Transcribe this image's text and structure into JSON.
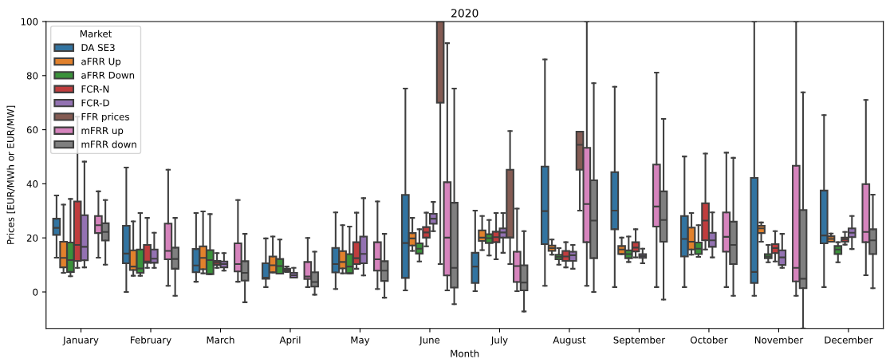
{
  "chart_data": {
    "type": "box",
    "title": "2020",
    "xlabel": "Month",
    "ylabel": "Prices [EUR/MWh or EUR/MW]",
    "legend_title": "Market",
    "legend": "top left",
    "grid": false,
    "categories": [
      "January",
      "February",
      "March",
      "April",
      "May",
      "June",
      "July",
      "August",
      "September",
      "October",
      "November",
      "December"
    ],
    "ylim": [
      -13.5,
      100
    ],
    "yticks": [
      0,
      20,
      40,
      60,
      80,
      100
    ],
    "series": [
      {
        "name": "DA SE3",
        "color": "#3274a1",
        "boxes": [
          {
            "low": 12.7,
            "q1": 21.1,
            "median": 23.7,
            "q3": 27.1,
            "high": 35.7
          },
          {
            "low": 0,
            "q1": 10.6,
            "median": 14.2,
            "q3": 24.5,
            "high": 46
          },
          {
            "low": 3.8,
            "q1": 7.3,
            "median": 9.8,
            "q3": 15.9,
            "high": 29.2
          },
          {
            "low": 1.8,
            "q1": 4.9,
            "median": 5.3,
            "q3": 10.6,
            "high": 19.8
          },
          {
            "low": 1.1,
            "q1": 7.2,
            "median": 10.3,
            "q3": 16.3,
            "high": 29.4
          },
          {
            "low": 0.6,
            "q1": 5.2,
            "median": 18.1,
            "q3": 35.9,
            "high": 75.2
          },
          {
            "low": 0.3,
            "q1": 3.3,
            "median": 9.4,
            "q3": 14.5,
            "high": 30.1
          },
          {
            "low": 2.3,
            "q1": 17.7,
            "median": 29.9,
            "q3": 46.4,
            "high": 86.0
          },
          {
            "low": 1.8,
            "q1": 23.2,
            "median": 30.1,
            "q3": 44.3,
            "high": 75.9
          },
          {
            "low": 1.8,
            "q1": 13.1,
            "median": 19.6,
            "q3": 28.1,
            "high": 50.1
          },
          {
            "low": -1.4,
            "q1": 3.3,
            "median": 7.4,
            "q3": 42.2,
            "high": 100
          },
          {
            "low": 1.8,
            "q1": 18.0,
            "median": 20.9,
            "q3": 37.5,
            "high": 65.4
          }
        ]
      },
      {
        "name": "aFRR Up",
        "color": "#e1812c",
        "boxes": [
          {
            "low": 7.1,
            "q1": 9.1,
            "median": 12.6,
            "q3": 18.6,
            "high": 32.3
          },
          {
            "low": 6.0,
            "q1": 8.1,
            "median": 9.4,
            "q3": 15.4,
            "high": 26.1
          },
          {
            "low": 6.9,
            "q1": 8.4,
            "median": 12.6,
            "q3": 16.9,
            "high": 29.8
          },
          {
            "low": 7.2,
            "q1": 7.2,
            "median": 9.9,
            "q3": 13.1,
            "high": 20.5
          },
          {
            "low": 6.9,
            "q1": 8.7,
            "median": 11.1,
            "q3": 15.1,
            "high": 24.7
          },
          {
            "low": 15.2,
            "q1": 17.2,
            "median": 19.8,
            "q3": 21.8,
            "high": 27.4
          },
          {
            "low": 15.5,
            "q1": 18.9,
            "median": 20.1,
            "q3": 22.8,
            "high": 28.1
          },
          {
            "low": 13.8,
            "q1": 15.2,
            "median": 16.2,
            "q3": 17.2,
            "high": 19.4
          },
          {
            "low": 14.0,
            "q1": 14.0,
            "median": 15.7,
            "q3": 17.0,
            "high": 20.1
          },
          {
            "low": 13.8,
            "q1": 15.7,
            "median": 18.6,
            "q3": 23.8,
            "high": 29.2
          },
          {
            "low": 18.6,
            "q1": 21.8,
            "median": 23.5,
            "q3": 24.5,
            "high": 25.7
          },
          {
            "low": 18.6,
            "q1": 18.6,
            "median": 19.6,
            "q3": 20.6,
            "high": 21.6
          }
        ]
      },
      {
        "name": "aFRR Down",
        "color": "#3a923a",
        "boxes": [
          {
            "low": 5.8,
            "q1": 7.4,
            "median": 11.8,
            "q3": 18.3,
            "high": 34.4
          },
          {
            "low": 6.0,
            "q1": 7.1,
            "median": 8.7,
            "q3": 15.7,
            "high": 29.2
          },
          {
            "low": 6.6,
            "q1": 6.6,
            "median": 11.8,
            "q3": 15.5,
            "high": 28.8
          },
          {
            "low": 6.8,
            "q1": 6.8,
            "median": 9.6,
            "q3": 12.2,
            "high": 19.4
          },
          {
            "low": 6.9,
            "q1": 6.9,
            "median": 9.4,
            "q3": 14.0,
            "high": 24.2
          },
          {
            "low": 11.3,
            "q1": 14.2,
            "median": 16.0,
            "q3": 18.0,
            "high": 23.2
          },
          {
            "low": 13.5,
            "q1": 18.1,
            "median": 19.9,
            "q3": 21.4,
            "high": 26.6
          },
          {
            "low": 10.1,
            "q1": 12.1,
            "median": 13.0,
            "q3": 13.8,
            "high": 16.2
          },
          {
            "low": 11.1,
            "q1": 12.5,
            "median": 14.0,
            "q3": 15.4,
            "high": 20.5
          },
          {
            "low": 13.0,
            "q1": 14.0,
            "median": 16.0,
            "q3": 18.3,
            "high": 24.7
          },
          {
            "low": 11.0,
            "q1": 12.5,
            "median": 13.1,
            "q3": 14.0,
            "high": 17.4
          },
          {
            "low": 11.0,
            "q1": 14.0,
            "median": 15.7,
            "q3": 17.0,
            "high": 18.4
          }
        ]
      },
      {
        "name": "FCR-N",
        "color": "#c03d3e",
        "boxes": [
          {
            "low": 8.9,
            "q1": 11.5,
            "median": 17.4,
            "q3": 33.5,
            "high": 64.8
          },
          {
            "low": 8.9,
            "q1": 10.8,
            "median": 11.3,
            "q3": 17.4,
            "high": 27.4
          },
          {
            "low": 8.9,
            "q1": 10.0,
            "median": 10.8,
            "q3": 11.5,
            "high": 14.4
          },
          {
            "low": 7.4,
            "q1": 7.6,
            "median": 8.1,
            "q3": 8.6,
            "high": 9.4
          },
          {
            "low": 8.6,
            "q1": 10.3,
            "median": 12.5,
            "q3": 18.4,
            "high": 29.3
          },
          {
            "low": 16.9,
            "q1": 20.1,
            "median": 22.0,
            "q3": 24.0,
            "high": 29.3
          },
          {
            "low": 12.1,
            "q1": 18.4,
            "median": 20.3,
            "q3": 22.3,
            "high": 29.2
          },
          {
            "low": 9.1,
            "q1": 11.5,
            "median": 13.1,
            "q3": 15.2,
            "high": 18.4
          },
          {
            "low": 12.8,
            "q1": 15.0,
            "median": 16.4,
            "q3": 18.4,
            "high": 23.2
          },
          {
            "low": 15.7,
            "q1": 19.1,
            "median": 26.4,
            "q3": 32.8,
            "high": 51.2
          },
          {
            "low": 11.3,
            "q1": 14.4,
            "median": 16.2,
            "q3": 17.7,
            "high": 22.5
          },
          {
            "low": 17.5,
            "q1": 18.6,
            "median": 19.4,
            "q3": 20.1,
            "high": 22.2
          }
        ]
      },
      {
        "name": "FCR-D",
        "color": "#9372b2",
        "boxes": [
          {
            "low": 9.1,
            "q1": 11.7,
            "median": 16.7,
            "q3": 28.4,
            "high": 48.2
          },
          {
            "low": 8.9,
            "q1": 10.8,
            "median": 12.3,
            "q3": 15.7,
            "high": 21.9
          },
          {
            "low": 7.9,
            "q1": 9.1,
            "median": 10.3,
            "q3": 11.3,
            "high": 14.4
          },
          {
            "low": 5.3,
            "q1": 5.3,
            "median": 6.2,
            "q3": 7.1,
            "high": 8.9
          },
          {
            "low": 6.1,
            "q1": 10.6,
            "median": 14.1,
            "q3": 20.5,
            "high": 34.7
          },
          {
            "low": 22.5,
            "q1": 25.2,
            "median": 27.1,
            "q3": 28.9,
            "high": 33.3
          },
          {
            "low": 14.5,
            "q1": 20.1,
            "median": 22.0,
            "q3": 23.5,
            "high": 29.2
          },
          {
            "low": 8.6,
            "q1": 11.5,
            "median": 13.6,
            "q3": 14.9,
            "high": 17.4
          },
          {
            "low": 10.6,
            "q1": 12.6,
            "median": 13.3,
            "q3": 14.0,
            "high": 16.0
          },
          {
            "low": 12.8,
            "q1": 16.7,
            "median": 19.1,
            "q3": 21.9,
            "high": 29.4
          },
          {
            "low": 8.9,
            "q1": 10.0,
            "median": 12.8,
            "q3": 15.4,
            "high": 21.5
          },
          {
            "low": 15.9,
            "q1": 20.3,
            "median": 21.9,
            "q3": 23.5,
            "high": 28.1
          }
        ]
      },
      {
        "name": "FFR prices",
        "color": "#845b53",
        "boxes": [
          null,
          null,
          null,
          null,
          null,
          {
            "low": 10.3,
            "q1": 70.0,
            "median": 100,
            "q3": 100,
            "high": 100
          },
          {
            "low": 10.3,
            "q1": 20.1,
            "median": 20.1,
            "q3": 45.2,
            "high": 59.5
          },
          {
            "low": 30.1,
            "q1": 45.2,
            "median": 54.4,
            "q3": 59.3,
            "high": 59.3
          },
          null,
          null,
          null,
          null
        ]
      },
      {
        "name": "mFRR up",
        "color": "#d684bd",
        "boxes": [
          {
            "low": 12.7,
            "q1": 21.8,
            "median": 24.7,
            "q3": 28.1,
            "high": 37.2
          },
          {
            "low": 2.3,
            "q1": 12.1,
            "median": 15.2,
            "q3": 25.3,
            "high": 45.2
          },
          {
            "low": 3.8,
            "q1": 7.6,
            "median": 10.3,
            "q3": 18.0,
            "high": 34.0
          },
          {
            "low": 1.8,
            "q1": 4.8,
            "median": 5.7,
            "q3": 11.1,
            "high": 20.0
          },
          {
            "low": 1.1,
            "q1": 7.9,
            "median": 12.1,
            "q3": 18.4,
            "high": 33.5
          },
          {
            "low": 0.6,
            "q1": 6.1,
            "median": 20.1,
            "q3": 40.6,
            "high": 92.0
          },
          {
            "low": 0.3,
            "q1": 3.7,
            "median": 9.6,
            "q3": 14.9,
            "high": 30.8
          },
          {
            "low": 2.3,
            "q1": 18.4,
            "median": 32.5,
            "q3": 53.3,
            "high": 100
          },
          {
            "low": 1.8,
            "q1": 24.2,
            "median": 31.6,
            "q3": 47.1,
            "high": 81.1
          },
          {
            "low": 1.8,
            "q1": 14.9,
            "median": 20.4,
            "q3": 29.4,
            "high": 51.5
          },
          {
            "low": -1.4,
            "q1": 3.9,
            "median": 8.9,
            "q3": 46.7,
            "high": 100
          },
          {
            "low": 6.2,
            "q1": 18.4,
            "median": 22.2,
            "q3": 39.9,
            "high": 71.0
          }
        ]
      },
      {
        "name": "mFRR down",
        "color": "#7f7f7f",
        "boxes": [
          {
            "low": 10.1,
            "q1": 19.0,
            "median": 22.2,
            "q3": 25.4,
            "high": 34.0
          },
          {
            "low": -1.4,
            "q1": 8.6,
            "median": 12.2,
            "q3": 16.4,
            "high": 27.4
          },
          {
            "low": -3.8,
            "q1": 4.2,
            "median": 7.1,
            "q3": 11.4,
            "high": 21.5
          },
          {
            "low": -1.0,
            "q1": 2.0,
            "median": 3.7,
            "q3": 7.3,
            "high": 14.9
          },
          {
            "low": -2.1,
            "q1": 4.1,
            "median": 7.9,
            "q3": 11.4,
            "high": 21.5
          },
          {
            "low": -4.5,
            "q1": 1.6,
            "median": 8.9,
            "q3": 33.0,
            "high": 75.2
          },
          {
            "low": -7.2,
            "q1": 0.6,
            "median": 3.5,
            "q3": 9.9,
            "high": 22.5
          },
          {
            "low": 0,
            "q1": 12.5,
            "median": 26.4,
            "q3": 41.3,
            "high": 77.2
          },
          {
            "low": -2.8,
            "q1": 18.6,
            "median": 26.6,
            "q3": 37.2,
            "high": 64.0
          },
          {
            "low": -1.4,
            "q1": 10.3,
            "median": 17.4,
            "q3": 26.0,
            "high": 49.6
          },
          {
            "low": -13.5,
            "q1": 1.4,
            "median": 4.9,
            "q3": 30.3,
            "high": 73.8
          },
          {
            "low": 1.4,
            "q1": 14.0,
            "median": 19.1,
            "q3": 23.2,
            "high": 36.0
          }
        ]
      }
    ]
  }
}
